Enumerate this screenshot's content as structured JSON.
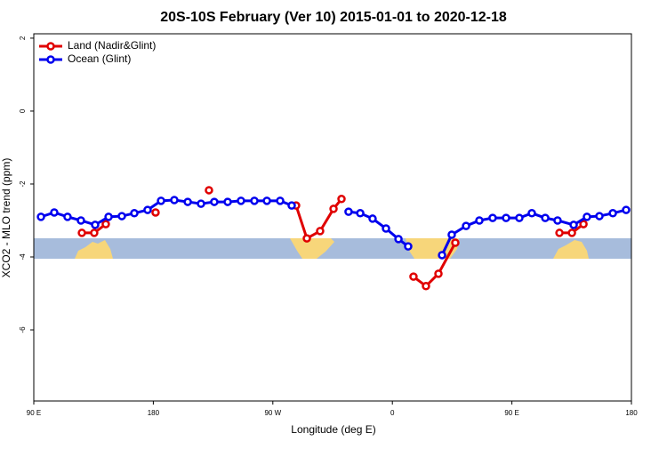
{
  "chart_data": {
    "type": "line",
    "title": "20S-10S February (Ver 10)   2015-01-01 to 2020-12-18",
    "x_label": "Longitude (deg E)",
    "y_label": "XCO2 - MLO trend (ppm)",
    "xlim": [
      90,
      540
    ],
    "xticks": [
      {
        "value": 90,
        "label": "90 E"
      },
      {
        "value": 180,
        "label": "180"
      },
      {
        "value": 270,
        "label": "90 W"
      },
      {
        "value": 360,
        "label": "0"
      },
      {
        "value": 450,
        "label": "90 E"
      },
      {
        "value": 540,
        "label": "180"
      }
    ],
    "ylim": [
      -7.95,
      2.12
    ],
    "yticks": [
      2,
      0,
      -2,
      -4,
      -6
    ],
    "legend": "upper left",
    "series": [
      {
        "name": "Land (Nadir&Glint)",
        "color": "#e00000",
        "x": [
          126.2,
          135.5,
          144.2,
          null,
          181.7,
          null,
          221.9,
          null,
          287.5,
          295.6,
          305.6,
          315.7,
          321.7,
          null,
          375.9,
          385.3,
          394.7,
          407.4,
          null,
          485.8,
          495.2,
          503.9
        ],
        "values": [
          -3.34,
          -3.34,
          -3.1,
          null,
          -2.78,
          null,
          -2.17,
          null,
          -2.59,
          -3.49,
          -3.29,
          -2.68,
          -2.41,
          null,
          -4.54,
          -4.8,
          -4.46,
          -3.61,
          null,
          -3.34,
          -3.34,
          -3.1
        ]
      },
      {
        "name": "Ocean (Glint)",
        "color": "#0000ee",
        "x": [
          95.4,
          105.4,
          115.4,
          125.5,
          136.2,
          146.3,
          156.3,
          165.7,
          175.7,
          185.8,
          195.8,
          205.9,
          215.9,
          225.9,
          236.0,
          246.0,
          256.1,
          265.5,
          275.5,
          284.2,
          null,
          327.0,
          335.8,
          345.1,
          355.2,
          364.6,
          371.9,
          null,
          397.4,
          404.7,
          415.5,
          425.5,
          435.5,
          445.6,
          455.6,
          465.0,
          475.1,
          484.4,
          496.5,
          506.5,
          515.9,
          526.0,
          536.0
        ],
        "values": [
          -2.9,
          -2.78,
          -2.9,
          -3.0,
          -3.12,
          -2.9,
          -2.88,
          -2.8,
          -2.71,
          -2.46,
          -2.44,
          -2.49,
          -2.54,
          -2.49,
          -2.49,
          -2.46,
          -2.46,
          -2.46,
          -2.46,
          -2.59,
          null,
          -2.76,
          -2.8,
          -2.95,
          -3.22,
          -3.51,
          -3.71,
          null,
          -3.95,
          -3.39,
          -3.15,
          -3.0,
          -2.93,
          -2.93,
          -2.93,
          -2.8,
          -2.93,
          -3.0,
          -3.12,
          -2.9,
          -2.88,
          -2.8,
          -2.71
        ]
      }
    ]
  }
}
